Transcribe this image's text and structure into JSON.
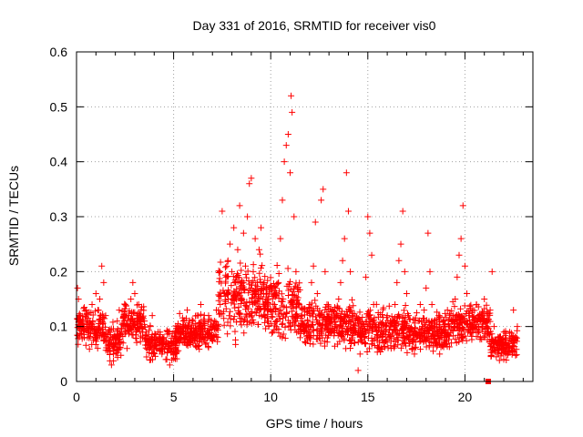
{
  "chart_data": {
    "type": "scatter",
    "title": "Day 331 of 2016, SRMTID for receiver vis0",
    "xlabel": "GPS time / hours",
    "ylabel": "SRMTID / TECUs",
    "xlim": [
      0,
      23.5
    ],
    "ylim": [
      0,
      0.6
    ],
    "x_ticks": [
      0,
      5,
      10,
      15,
      20
    ],
    "y_ticks": [
      0,
      0.1,
      0.2,
      0.3,
      0.4,
      0.5,
      0.6
    ],
    "x_tick_labels": [
      "0",
      "5",
      "10",
      "15",
      "20"
    ],
    "y_tick_labels": [
      "0",
      "0.1",
      "0.2",
      "0.3",
      "0.4",
      "0.5",
      "0.6"
    ],
    "grid": true,
    "marker": "plus",
    "series": [
      {
        "name": "SRMTID",
        "color": "#ff0000",
        "points": [
          [
            0.05,
            0.17
          ],
          [
            0.1,
            0.15
          ],
          [
            0.2,
            0.12
          ],
          [
            0.3,
            0.1
          ],
          [
            0.4,
            0.08
          ],
          [
            0.5,
            0.13
          ],
          [
            0.6,
            0.09
          ],
          [
            0.7,
            0.11
          ],
          [
            0.8,
            0.14
          ],
          [
            0.9,
            0.1
          ],
          [
            1.0,
            0.16
          ],
          [
            1.1,
            0.13
          ],
          [
            1.2,
            0.15
          ],
          [
            1.3,
            0.21
          ],
          [
            1.4,
            0.18
          ],
          [
            1.5,
            0.12
          ],
          [
            1.6,
            0.09
          ],
          [
            1.7,
            0.06
          ],
          [
            1.8,
            0.03
          ],
          [
            1.9,
            0.05
          ],
          [
            2.0,
            0.08
          ],
          [
            2.1,
            0.11
          ],
          [
            2.2,
            0.13
          ],
          [
            2.3,
            0.09
          ],
          [
            2.4,
            0.07
          ],
          [
            2.5,
            0.1
          ],
          [
            2.6,
            0.06
          ],
          [
            2.7,
            0.12
          ],
          [
            2.8,
            0.15
          ],
          [
            2.9,
            0.18
          ],
          [
            3.0,
            0.16
          ],
          [
            3.1,
            0.12
          ],
          [
            3.2,
            0.14
          ],
          [
            3.3,
            0.1
          ],
          [
            3.4,
            0.08
          ],
          [
            3.5,
            0.11
          ],
          [
            3.6,
            0.09
          ],
          [
            3.7,
            0.07
          ],
          [
            3.8,
            0.1
          ],
          [
            3.9,
            0.12
          ],
          [
            4.0,
            0.08
          ],
          [
            4.1,
            0.06
          ],
          [
            4.2,
            0.09
          ],
          [
            4.3,
            0.07
          ],
          [
            4.4,
            0.05
          ],
          [
            4.5,
            0.08
          ],
          [
            4.6,
            0.04
          ],
          [
            4.7,
            0.06
          ],
          [
            4.8,
            0.03
          ],
          [
            4.9,
            0.07
          ],
          [
            5.0,
            0.05
          ],
          [
            5.1,
            0.08
          ],
          [
            5.2,
            0.1
          ],
          [
            5.3,
            0.07
          ],
          [
            5.4,
            0.09
          ],
          [
            5.5,
            0.11
          ],
          [
            5.6,
            0.08
          ],
          [
            5.7,
            0.13
          ],
          [
            5.8,
            0.1
          ],
          [
            5.9,
            0.09
          ],
          [
            6.0,
            0.11
          ],
          [
            6.1,
            0.08
          ],
          [
            6.2,
            0.12
          ],
          [
            6.3,
            0.1
          ],
          [
            6.4,
            0.14
          ],
          [
            6.5,
            0.09
          ],
          [
            6.6,
            0.11
          ],
          [
            6.7,
            0.07
          ],
          [
            6.8,
            0.12
          ],
          [
            6.9,
            0.1
          ],
          [
            7.0,
            0.08
          ],
          [
            7.1,
            0.11
          ],
          [
            7.2,
            0.13
          ],
          [
            7.3,
            0.1
          ],
          [
            7.4,
            0.14
          ],
          [
            7.5,
            0.31
          ],
          [
            7.6,
            0.16
          ],
          [
            7.7,
            0.19
          ],
          [
            7.8,
            0.22
          ],
          [
            7.9,
            0.25
          ],
          [
            8.0,
            0.2
          ],
          [
            8.1,
            0.28
          ],
          [
            8.2,
            0.18
          ],
          [
            8.3,
            0.24
          ],
          [
            8.4,
            0.32
          ],
          [
            8.5,
            0.15
          ],
          [
            8.6,
            0.27
          ],
          [
            8.7,
            0.21
          ],
          [
            8.8,
            0.3
          ],
          [
            8.9,
            0.36
          ],
          [
            9.0,
            0.37
          ],
          [
            9.1,
            0.2
          ],
          [
            9.2,
            0.26
          ],
          [
            9.3,
            0.18
          ],
          [
            9.4,
            0.24
          ],
          [
            9.5,
            0.28
          ],
          [
            9.6,
            0.15
          ],
          [
            9.7,
            0.12
          ],
          [
            9.8,
            0.16
          ],
          [
            9.9,
            0.1
          ],
          [
            10.0,
            0.13
          ],
          [
            10.1,
            0.09
          ],
          [
            10.2,
            0.14
          ],
          [
            10.3,
            0.11
          ],
          [
            10.4,
            0.18
          ],
          [
            10.5,
            0.26
          ],
          [
            10.6,
            0.33
          ],
          [
            10.7,
            0.4
          ],
          [
            10.8,
            0.43
          ],
          [
            10.9,
            0.45
          ],
          [
            11.0,
            0.38
          ],
          [
            11.05,
            0.52
          ],
          [
            11.1,
            0.49
          ],
          [
            11.2,
            0.3
          ],
          [
            11.3,
            0.2
          ],
          [
            11.4,
            0.14
          ],
          [
            11.5,
            0.1
          ],
          [
            11.6,
            0.12
          ],
          [
            11.7,
            0.09
          ],
          [
            11.8,
            0.07
          ],
          [
            11.9,
            0.11
          ],
          [
            12.0,
            0.14
          ],
          [
            12.1,
            0.18
          ],
          [
            12.2,
            0.21
          ],
          [
            12.3,
            0.29
          ],
          [
            12.4,
            0.16
          ],
          [
            12.5,
            0.12
          ],
          [
            12.6,
            0.33
          ],
          [
            12.7,
            0.35
          ],
          [
            12.8,
            0.2
          ],
          [
            12.9,
            0.14
          ],
          [
            13.0,
            0.11
          ],
          [
            13.1,
            0.09
          ],
          [
            13.2,
            0.13
          ],
          [
            13.3,
            0.1
          ],
          [
            13.4,
            0.12
          ],
          [
            13.5,
            0.15
          ],
          [
            13.6,
            0.18
          ],
          [
            13.7,
            0.22
          ],
          [
            13.8,
            0.26
          ],
          [
            13.9,
            0.38
          ],
          [
            14.0,
            0.31
          ],
          [
            14.1,
            0.2
          ],
          [
            14.2,
            0.12
          ],
          [
            14.3,
            0.07
          ],
          [
            14.4,
            0.09
          ],
          [
            14.5,
            0.02
          ],
          [
            14.6,
            0.05
          ],
          [
            14.7,
            0.08
          ],
          [
            14.8,
            0.1
          ],
          [
            14.9,
            0.19
          ],
          [
            15.0,
            0.3
          ],
          [
            15.1,
            0.27
          ],
          [
            15.2,
            0.23
          ],
          [
            15.3,
            0.14
          ],
          [
            15.4,
            0.1
          ],
          [
            15.5,
            0.08
          ],
          [
            15.6,
            0.06
          ],
          [
            15.7,
            0.09
          ],
          [
            15.8,
            0.07
          ],
          [
            15.9,
            0.1
          ],
          [
            16.0,
            0.12
          ],
          [
            16.1,
            0.08
          ],
          [
            16.2,
            0.06
          ],
          [
            16.3,
            0.11
          ],
          [
            16.4,
            0.14
          ],
          [
            16.5,
            0.18
          ],
          [
            16.6,
            0.22
          ],
          [
            16.7,
            0.25
          ],
          [
            16.8,
            0.31
          ],
          [
            16.9,
            0.2
          ],
          [
            17.0,
            0.16
          ],
          [
            17.1,
            0.12
          ],
          [
            17.2,
            0.09
          ],
          [
            17.3,
            0.06
          ],
          [
            17.4,
            0.05
          ],
          [
            17.5,
            0.08
          ],
          [
            17.6,
            0.11
          ],
          [
            17.7,
            0.14
          ],
          [
            17.8,
            0.1
          ],
          [
            17.9,
            0.13
          ],
          [
            18.0,
            0.17
          ],
          [
            18.1,
            0.27
          ],
          [
            18.2,
            0.2
          ],
          [
            18.3,
            0.14
          ],
          [
            18.4,
            0.1
          ],
          [
            18.5,
            0.07
          ],
          [
            18.6,
            0.09
          ],
          [
            18.7,
            0.05
          ],
          [
            18.8,
            0.08
          ],
          [
            18.9,
            0.11
          ],
          [
            19.0,
            0.09
          ],
          [
            19.1,
            0.13
          ],
          [
            19.2,
            0.1
          ],
          [
            19.3,
            0.07
          ],
          [
            19.4,
            0.12
          ],
          [
            19.5,
            0.15
          ],
          [
            19.6,
            0.19
          ],
          [
            19.7,
            0.23
          ],
          [
            19.8,
            0.26
          ],
          [
            19.9,
            0.32
          ],
          [
            20.0,
            0.21
          ],
          [
            20.1,
            0.16
          ],
          [
            20.2,
            0.12
          ],
          [
            20.3,
            0.09
          ],
          [
            20.4,
            0.13
          ],
          [
            20.5,
            0.11
          ],
          [
            20.6,
            0.14
          ],
          [
            20.7,
            0.1
          ],
          [
            20.8,
            0.08
          ],
          [
            20.9,
            0.12
          ],
          [
            21.0,
            0.15
          ],
          [
            21.1,
            0.11
          ],
          [
            21.2,
            0.09
          ],
          [
            21.3,
            0.13
          ],
          [
            21.4,
            0.2
          ],
          [
            21.5,
            0.1
          ],
          [
            21.6,
            0.07
          ],
          [
            21.7,
            0.05
          ],
          [
            21.8,
            0.08
          ],
          [
            21.9,
            0.06
          ],
          [
            22.0,
            0.04
          ],
          [
            22.1,
            0.07
          ],
          [
            22.2,
            0.05
          ],
          [
            22.3,
            0.09
          ],
          [
            22.4,
            0.06
          ],
          [
            22.5,
            0.13
          ],
          [
            22.6,
            0.08
          ],
          [
            22.7,
            0.1
          ]
        ]
      }
    ],
    "cluster_bands": [
      {
        "x_from": 0.0,
        "x_to": 1.5,
        "y_low": 0.05,
        "y_high": 0.15
      },
      {
        "x_from": 1.5,
        "x_to": 2.3,
        "y_low": 0.03,
        "y_high": 0.11
      },
      {
        "x_from": 2.3,
        "x_to": 3.5,
        "y_low": 0.06,
        "y_high": 0.16
      },
      {
        "x_from": 3.5,
        "x_to": 5.2,
        "y_low": 0.03,
        "y_high": 0.11
      },
      {
        "x_from": 5.2,
        "x_to": 7.3,
        "y_low": 0.05,
        "y_high": 0.13
      },
      {
        "x_from": 7.3,
        "x_to": 9.8,
        "y_low": 0.06,
        "y_high": 0.24
      },
      {
        "x_from": 9.8,
        "x_to": 11.5,
        "y_low": 0.06,
        "y_high": 0.22
      },
      {
        "x_from": 11.5,
        "x_to": 14.5,
        "y_low": 0.05,
        "y_high": 0.16
      },
      {
        "x_from": 14.5,
        "x_to": 17.0,
        "y_low": 0.04,
        "y_high": 0.15
      },
      {
        "x_from": 17.0,
        "x_to": 19.3,
        "y_low": 0.04,
        "y_high": 0.14
      },
      {
        "x_from": 19.3,
        "x_to": 21.3,
        "y_low": 0.06,
        "y_high": 0.15
      },
      {
        "x_from": 21.3,
        "x_to": 22.7,
        "y_low": 0.03,
        "y_high": 0.1
      }
    ],
    "outlier_marker": {
      "x": 21.2,
      "y": 0.0,
      "shape": "square"
    }
  }
}
